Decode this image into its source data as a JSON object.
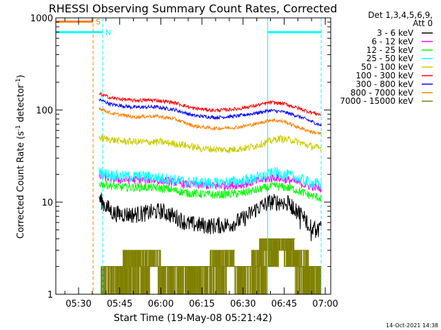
{
  "chart_data": {
    "type": "line",
    "title": "RHESSI Observing Summary Count Rates, Corrected",
    "xlabel": "Start Time (19-May-08 05:21:42)",
    "ylabel": "Corrected Count Rate (s",
    "ylabel_sup1": "-1",
    "ylabel_mid": " detector",
    "ylabel_sup2": "-1",
    "ylabel_end": ")",
    "x_ticks": [
      "05:30",
      "05:45",
      "06:00",
      "06:15",
      "06:30",
      "06:45",
      "07:00"
    ],
    "x_tick_minutes": [
      330,
      345,
      360,
      375,
      390,
      405,
      420
    ],
    "y_ticks": [
      "1",
      "10",
      "100",
      "1000"
    ],
    "y_tick_values": [
      1,
      10,
      100,
      1000
    ],
    "xlim_minutes": [
      321.7,
      422
    ],
    "ylim": [
      1,
      1000
    ],
    "y_scale": "log",
    "legend_header": [
      "Det 1,3,4,5,6,9,",
      "Att 0"
    ],
    "legend_placement": "right",
    "footer_date": "14-Oct-2021 14:38",
    "flag_labels": {
      "saa": "S",
      "night": "N"
    },
    "flags": [
      {
        "label": "S",
        "color": "#ff8000",
        "start": 321.7,
        "end": 335.3,
        "level": 910
      },
      {
        "label": "N",
        "color": "#00ffff",
        "start": 321.7,
        "end": 338.8,
        "level": 700
      },
      {
        "label": "",
        "color": "#00ffff",
        "start": 399.0,
        "end": 418.5,
        "level": 700
      }
    ],
    "vlines": [
      {
        "x": 321.7,
        "color": "#00ffff",
        "style": "solid"
      },
      {
        "x": 335.3,
        "color": "#ff8000",
        "style": "dashed"
      },
      {
        "x": 338.8,
        "color": "#00ffff",
        "style": "dashed"
      },
      {
        "x": 399.0,
        "color": "#00ffff",
        "style": "solid"
      },
      {
        "x": 418.5,
        "color": "#00ffff",
        "style": "dashed"
      }
    ],
    "x_data_start": 337.5,
    "x_data_end": 418.5,
    "series": [
      {
        "name": "3 - 6 keV",
        "color": "#000000",
        "noise": 0.12,
        "points": [
          [
            337.5,
            11
          ],
          [
            340,
            9
          ],
          [
            343,
            7.5
          ],
          [
            350,
            7.3
          ],
          [
            355,
            7.6
          ],
          [
            360,
            8
          ],
          [
            365,
            7
          ],
          [
            370,
            5.8
          ],
          [
            378,
            5.5
          ],
          [
            385,
            5.7
          ],
          [
            390,
            6.5
          ],
          [
            395,
            8.5
          ],
          [
            400,
            10
          ],
          [
            405,
            10
          ],
          [
            408,
            9
          ],
          [
            412,
            7
          ],
          [
            415,
            5.5
          ],
          [
            418.5,
            5
          ]
        ]
      },
      {
        "name": "6 - 12 keV",
        "color": "#ff00ff",
        "noise": 0.06,
        "points": [
          [
            337.5,
            19
          ],
          [
            345,
            17.5
          ],
          [
            355,
            17.5
          ],
          [
            362,
            17
          ],
          [
            370,
            15.5
          ],
          [
            380,
            15
          ],
          [
            390,
            15.5
          ],
          [
            397,
            17.5
          ],
          [
            402,
            18.5
          ],
          [
            408,
            17
          ],
          [
            414,
            15
          ],
          [
            418.5,
            14
          ]
        ]
      },
      {
        "name": "12 - 25 keV",
        "color": "#00ff00",
        "noise": 0.06,
        "points": [
          [
            337.5,
            16
          ],
          [
            345,
            14.5
          ],
          [
            355,
            14.5
          ],
          [
            362,
            14
          ],
          [
            370,
            12.5
          ],
          [
            380,
            12
          ],
          [
            390,
            12.5
          ],
          [
            397,
            14
          ],
          [
            402,
            15
          ],
          [
            408,
            14
          ],
          [
            414,
            12
          ],
          [
            418.5,
            11
          ]
        ]
      },
      {
        "name": "25 - 50 keV",
        "color": "#00ffff",
        "noise": 0.08,
        "points": [
          [
            337.5,
            21
          ],
          [
            345,
            19
          ],
          [
            355,
            19
          ],
          [
            362,
            18
          ],
          [
            370,
            16.5
          ],
          [
            380,
            16
          ],
          [
            390,
            17
          ],
          [
            397,
            19
          ],
          [
            402,
            21
          ],
          [
            408,
            19
          ],
          [
            414,
            16.5
          ],
          [
            418.5,
            15.5
          ]
        ]
      },
      {
        "name": "50 - 100 keV",
        "color": "#cccc00",
        "noise": 0.05,
        "points": [
          [
            337.5,
            50
          ],
          [
            345,
            46
          ],
          [
            352,
            45
          ],
          [
            360,
            45
          ],
          [
            368,
            42
          ],
          [
            375,
            38
          ],
          [
            385,
            37
          ],
          [
            392,
            39
          ],
          [
            398,
            44
          ],
          [
            403,
            49
          ],
          [
            408,
            47
          ],
          [
            414,
            41
          ],
          [
            418.5,
            38
          ]
        ]
      },
      {
        "name": "100 - 300 keV",
        "color": "#ff0000",
        "noise": 0.025,
        "points": [
          [
            337.5,
            150
          ],
          [
            342,
            135
          ],
          [
            350,
            127
          ],
          [
            358,
            128
          ],
          [
            365,
            120
          ],
          [
            372,
            104
          ],
          [
            380,
            99
          ],
          [
            388,
            103
          ],
          [
            395,
            112
          ],
          [
            400,
            121
          ],
          [
            405,
            117
          ],
          [
            410,
            105
          ],
          [
            415,
            94
          ],
          [
            418.5,
            89
          ]
        ]
      },
      {
        "name": "300 - 800 keV",
        "color": "#0000ff",
        "noise": 0.025,
        "points": [
          [
            337.5,
            130
          ],
          [
            342,
            115
          ],
          [
            350,
            107
          ],
          [
            358,
            108
          ],
          [
            365,
            101
          ],
          [
            372,
            87
          ],
          [
            380,
            83
          ],
          [
            388,
            86
          ],
          [
            395,
            93
          ],
          [
            400,
            99
          ],
          [
            405,
            95
          ],
          [
            410,
            86
          ],
          [
            415,
            75
          ],
          [
            418.5,
            68
          ]
        ]
      },
      {
        "name": "800 - 7000 keV",
        "color": "#ff8000",
        "noise": 0.025,
        "points": [
          [
            337.5,
            105
          ],
          [
            342,
            92
          ],
          [
            350,
            84
          ],
          [
            358,
            86
          ],
          [
            365,
            80
          ],
          [
            372,
            67
          ],
          [
            380,
            63
          ],
          [
            388,
            65
          ],
          [
            395,
            71
          ],
          [
            400,
            78
          ],
          [
            405,
            75
          ],
          [
            410,
            65
          ],
          [
            415,
            58
          ],
          [
            418.5,
            55
          ]
        ]
      },
      {
        "name": "7000 - 15000 keV",
        "color": "#808000",
        "noise": 0,
        "points": []
      }
    ],
    "olive_bands": [
      {
        "start": 338.2,
        "end": 356.0,
        "low": 1,
        "high": 2
      },
      {
        "start": 346.0,
        "end": 360.0,
        "low": 2,
        "high": 3
      },
      {
        "start": 359.0,
        "end": 371.0,
        "low": 1,
        "high": 2
      },
      {
        "start": 371.0,
        "end": 384.0,
        "low": 1,
        "high": 2
      },
      {
        "start": 378.0,
        "end": 387.0,
        "low": 2,
        "high": 3
      },
      {
        "start": 387.0,
        "end": 399.0,
        "low": 1,
        "high": 2
      },
      {
        "start": 393.0,
        "end": 403.0,
        "low": 2,
        "high": 3
      },
      {
        "start": 396.0,
        "end": 409.0,
        "low": 3,
        "high": 4
      },
      {
        "start": 405.0,
        "end": 414.0,
        "low": 2,
        "high": 3
      },
      {
        "start": 409.0,
        "end": 418.5,
        "low": 1,
        "high": 2
      }
    ]
  }
}
